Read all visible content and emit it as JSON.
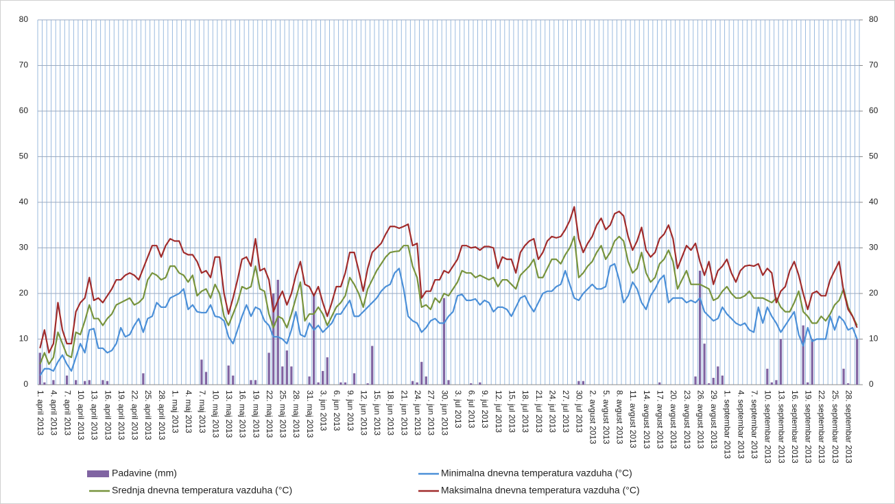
{
  "chart_data": {
    "type": "bar",
    "categories": [
      "1. april 2013",
      null,
      null,
      "4. april 2013",
      null,
      null,
      "7. april 2013",
      null,
      null,
      "10. april 2013",
      null,
      null,
      "13. april 2013",
      null,
      null,
      "16. april 2013",
      null,
      null,
      "19. april 2013",
      null,
      null,
      "22. april 2013",
      null,
      null,
      "25. april 2013",
      null,
      null,
      "28. april 2013",
      null,
      null,
      "1. maj 2013",
      null,
      null,
      "4. maj 2013",
      null,
      null,
      "7. maj 2013",
      null,
      null,
      "10. maj 2013",
      null,
      null,
      "13. maj 2013",
      null,
      null,
      "16. maj 2013",
      null,
      null,
      "19. maj 2013",
      null,
      null,
      "22. maj 2013",
      null,
      null,
      "25. maj 2013",
      null,
      null,
      "28. maj 2013",
      null,
      null,
      "31. maj 2013",
      null,
      null,
      "3. jun 2013",
      null,
      null,
      "6. jun 2013",
      null,
      null,
      "9. jun 2013",
      null,
      null,
      "12. jun 2013",
      null,
      null,
      "15. jun 2013",
      null,
      null,
      "18. jun 2013",
      null,
      null,
      "21. jun 2013",
      null,
      null,
      "24. jun 2013",
      null,
      null,
      "27. jun 2013",
      null,
      null,
      "30. jun 2013",
      null,
      null,
      "3. jul 2013",
      null,
      null,
      "6. jul 2013",
      null,
      null,
      "9. jul 2013",
      null,
      null,
      "12. jul 2013",
      null,
      null,
      "15. jul 2013",
      null,
      null,
      "18. jul 2013",
      null,
      null,
      "21. jul 2013",
      null,
      null,
      "24. jul 2013",
      null,
      null,
      "27. jul 2013",
      null,
      null,
      "30. jul 2013",
      null,
      null,
      "2. avgust 2013",
      null,
      null,
      "5. avgust 2013",
      null,
      null,
      "8. avgust 2013",
      null,
      null,
      "11. avgust 2013",
      null,
      null,
      "14. avgust 2013",
      null,
      null,
      "17. avgust 2013",
      null,
      null,
      "20. avgust 2013",
      null,
      null,
      "23. avgust 2013",
      null,
      null,
      "26. avgust 2013",
      null,
      null,
      "29. avgust 2013",
      null,
      null,
      "1. septembar 2013",
      null,
      null,
      "4. septembar 2013",
      null,
      null,
      "7. septembar 2013",
      null,
      null,
      "10. septembar 2013",
      null,
      null,
      "13. septembar 2013",
      null,
      null,
      "16. septembar 2013",
      null,
      null,
      "19. septembar 2013",
      null,
      null,
      "22. septembar 2013",
      null,
      null,
      "25. septembar 2013",
      null,
      null,
      "28. septembar 2013",
      null,
      null
    ],
    "series": [
      {
        "name": "Padavine (mm)",
        "type": "bar",
        "axis": "y2",
        "color": "#8064a2",
        "values": [
          7,
          0.5,
          0,
          1,
          0,
          0,
          2,
          0,
          1,
          0,
          0.8,
          1,
          0,
          0,
          1,
          0.8,
          0,
          0,
          0,
          0,
          0,
          0,
          0,
          2.5,
          0,
          0,
          0,
          0,
          0,
          0,
          0,
          0,
          0,
          0,
          0,
          0,
          5.5,
          2.8,
          0,
          0,
          0,
          0,
          4.2,
          2,
          0,
          0,
          0,
          1,
          1,
          0,
          0,
          7,
          20,
          23,
          4,
          7.5,
          4,
          0,
          0,
          0,
          1.8,
          20,
          0.5,
          3,
          6,
          0,
          0,
          0.5,
          0.5,
          0,
          2.5,
          0,
          0,
          0.3,
          8.5,
          0,
          0,
          0,
          0,
          0,
          0,
          0,
          0,
          0.8,
          0.5,
          5,
          1.8,
          0,
          0,
          0,
          19,
          1,
          0,
          0,
          0,
          0,
          0.3,
          0,
          0.5,
          0,
          0,
          0,
          0,
          0,
          0,
          0,
          0,
          0,
          0,
          0,
          0,
          0,
          0,
          0,
          0,
          0,
          0,
          0,
          0,
          0,
          0.8,
          0.8,
          0,
          0,
          0,
          0,
          0,
          0,
          0,
          0,
          0,
          0,
          0,
          0,
          0,
          0,
          0,
          0,
          0.5,
          0,
          0,
          0,
          0,
          0,
          0,
          0,
          1.8,
          25,
          9,
          0.3,
          1.5,
          4,
          2,
          0,
          0,
          0,
          0,
          0,
          0,
          0,
          0,
          0,
          3.5,
          0.5,
          1,
          10,
          0,
          0,
          0,
          0,
          13,
          0.5,
          10,
          0,
          0,
          0,
          0,
          0,
          0,
          3.5,
          0.3,
          0,
          10
        ]
      },
      {
        "name": "Minimalna dnevna temperatura vazduha (°C)",
        "type": "line",
        "color": "#4a8fd8",
        "values": [
          2,
          3.5,
          3.5,
          3,
          5,
          6.5,
          4.5,
          3,
          6,
          9,
          7,
          12,
          12.3,
          8,
          8,
          7,
          7.5,
          9,
          12.5,
          10.5,
          11,
          13,
          14.5,
          11.5,
          14.5,
          15,
          18,
          17,
          17,
          19,
          19.5,
          20,
          21,
          16.5,
          17.5,
          16,
          15.8,
          15.8,
          17.5,
          15,
          14.8,
          14,
          10.5,
          9,
          12,
          15,
          17.5,
          15,
          17,
          16.5,
          14,
          13,
          10.5,
          10.5,
          10,
          9,
          12,
          16,
          11,
          10.5,
          13.5,
          12,
          13,
          11.5,
          12.5,
          13.5,
          15.5,
          15.5,
          17,
          18.5,
          15,
          15,
          16,
          17,
          18,
          19,
          20.5,
          21.5,
          22,
          24.5,
          25.5,
          21,
          15,
          14,
          13.5,
          11.5,
          12.5,
          14,
          14.5,
          13.5,
          13.5,
          15,
          16,
          19.5,
          19.8,
          18.5,
          18.5,
          18.8,
          17.5,
          18.5,
          18,
          16,
          17,
          17,
          16.5,
          15,
          17,
          19,
          19.5,
          17.5,
          16,
          18,
          20,
          20.5,
          20.5,
          21.5,
          22,
          25,
          22,
          19,
          18.5,
          20,
          21,
          22,
          21,
          21,
          21.5,
          26,
          26.5,
          23,
          18,
          19.5,
          22.5,
          21,
          18,
          16.5,
          19.5,
          21,
          23,
          24,
          18,
          19,
          19,
          19,
          18,
          18.5,
          18,
          19,
          16,
          15,
          14,
          14.5,
          17,
          15.5,
          14.5,
          13.5,
          13,
          13.5,
          12,
          11.5,
          17,
          13.5,
          17,
          15,
          13.5,
          11.5,
          13,
          14.5,
          16,
          11,
          8.5,
          12.5,
          9.5,
          10,
          10,
          10,
          15,
          12,
          15,
          14,
          12,
          12.5,
          10
        ]
      },
      {
        "name": "Srednja dnevna temperatura vazduha (°C)",
        "type": "line",
        "color": "#77933c",
        "values": [
          4.5,
          7,
          4.5,
          6,
          11.5,
          9,
          6.5,
          6,
          11.5,
          11,
          14,
          17.5,
          14.5,
          14.5,
          13,
          14.5,
          15.5,
          17.5,
          18,
          18.5,
          19,
          17.5,
          18,
          19,
          23,
          24.5,
          24,
          23,
          23.5,
          26,
          26,
          24.5,
          24,
          22.5,
          24,
          19.5,
          20.5,
          21,
          19,
          22,
          20,
          15,
          13,
          15.5,
          18,
          21.5,
          21,
          21.5,
          26,
          21,
          20.5,
          15.5,
          12.5,
          15,
          14.5,
          12.5,
          15.5,
          19,
          22.5,
          14,
          15.5,
          15.5,
          17,
          15.5,
          13,
          15,
          17,
          18,
          19.5,
          23.5,
          22,
          20,
          17,
          21,
          23,
          25,
          26.5,
          28,
          29,
          29.2,
          29.3,
          30.5,
          30.5,
          26,
          23.5,
          17,
          17.5,
          16.5,
          19,
          18,
          20,
          19.5,
          21,
          22.5,
          25,
          24.5,
          24.5,
          23.5,
          24,
          23.5,
          23,
          23.5,
          21.5,
          23,
          23,
          22,
          21,
          24,
          25,
          26,
          27.5,
          23.5,
          23.5,
          25.5,
          27.5,
          27.5,
          26.5,
          28.5,
          30,
          32.5,
          23.5,
          24.5,
          26,
          27,
          29,
          30.5,
          27.5,
          29,
          31.5,
          32.5,
          31.5,
          27,
          24.5,
          25.5,
          29,
          24.5,
          22.5,
          23.5,
          26.5,
          27.5,
          29.5,
          27,
          21,
          23,
          25,
          22,
          22,
          22,
          21.5,
          21,
          18.5,
          19,
          20.5,
          21.5,
          20,
          19,
          19,
          19.5,
          20.5,
          19,
          19,
          19,
          18.5,
          18,
          19,
          17,
          16,
          16,
          18,
          20.5,
          16,
          15,
          13.5,
          13.5,
          15,
          14,
          15.5,
          17.5,
          18.5,
          21,
          17,
          15,
          13
        ]
      },
      {
        "name": "Maksimalna dnevna temperatura vazduha (°C)",
        "type": "line",
        "color": "#a02b2b",
        "values": [
          8,
          12,
          7,
          9,
          18,
          12,
          9,
          9,
          16,
          18,
          19,
          23.5,
          18.5,
          19,
          18,
          19.5,
          21,
          23,
          23,
          24,
          24.5,
          24,
          23,
          25.5,
          28,
          30.5,
          30.5,
          28,
          30.5,
          32,
          31.5,
          31.5,
          29,
          28.5,
          28.5,
          27,
          24.5,
          25,
          23.5,
          28,
          28,
          20,
          15.5,
          19,
          23,
          27.5,
          28,
          26,
          32,
          25,
          25.5,
          23,
          16,
          18.5,
          20.5,
          17.5,
          20,
          24,
          27,
          22,
          21.5,
          19.5,
          21.5,
          18,
          15,
          18,
          21.5,
          21.5,
          24.5,
          29,
          29,
          25,
          20.5,
          25.5,
          29,
          30,
          31,
          33,
          34.7,
          34.7,
          34.3,
          34.7,
          35.2,
          30.5,
          31,
          19,
          20.5,
          20.5,
          23,
          23,
          25,
          24.5,
          26,
          27.5,
          30.5,
          30.5,
          30,
          30.2,
          29.5,
          30.3,
          30.3,
          30,
          25.5,
          28,
          27.5,
          27.5,
          24.5,
          29,
          30.5,
          31.5,
          32,
          27.5,
          29,
          31.5,
          32.5,
          32.2,
          32.5,
          34,
          36,
          39,
          32,
          29,
          31,
          32.5,
          35,
          36.5,
          34,
          35,
          37.5,
          38,
          37,
          32.5,
          29.5,
          31.5,
          34.5,
          29.5,
          28,
          29,
          32,
          33,
          35,
          32,
          25.5,
          28,
          30.5,
          29.5,
          31,
          27,
          24,
          27,
          22,
          25,
          26,
          27.5,
          24.5,
          22.5,
          25,
          26,
          26.2,
          26,
          26.5,
          24,
          25.5,
          24.5,
          18,
          20.5,
          21.5,
          25,
          27,
          24,
          20,
          16.5,
          20,
          20.5,
          19.5,
          19.5,
          23,
          25,
          27,
          20.5,
          16.5,
          15,
          12.5
        ]
      }
    ],
    "ylim": [
      0,
      80
    ],
    "yticks": [
      0,
      10,
      20,
      30,
      40,
      50,
      60,
      70,
      80
    ],
    "y2lim": [
      0,
      80
    ],
    "y2ticks": [
      0,
      10,
      20,
      30,
      40,
      50,
      60,
      70,
      80
    ],
    "grid": true,
    "legend": "bottom"
  }
}
